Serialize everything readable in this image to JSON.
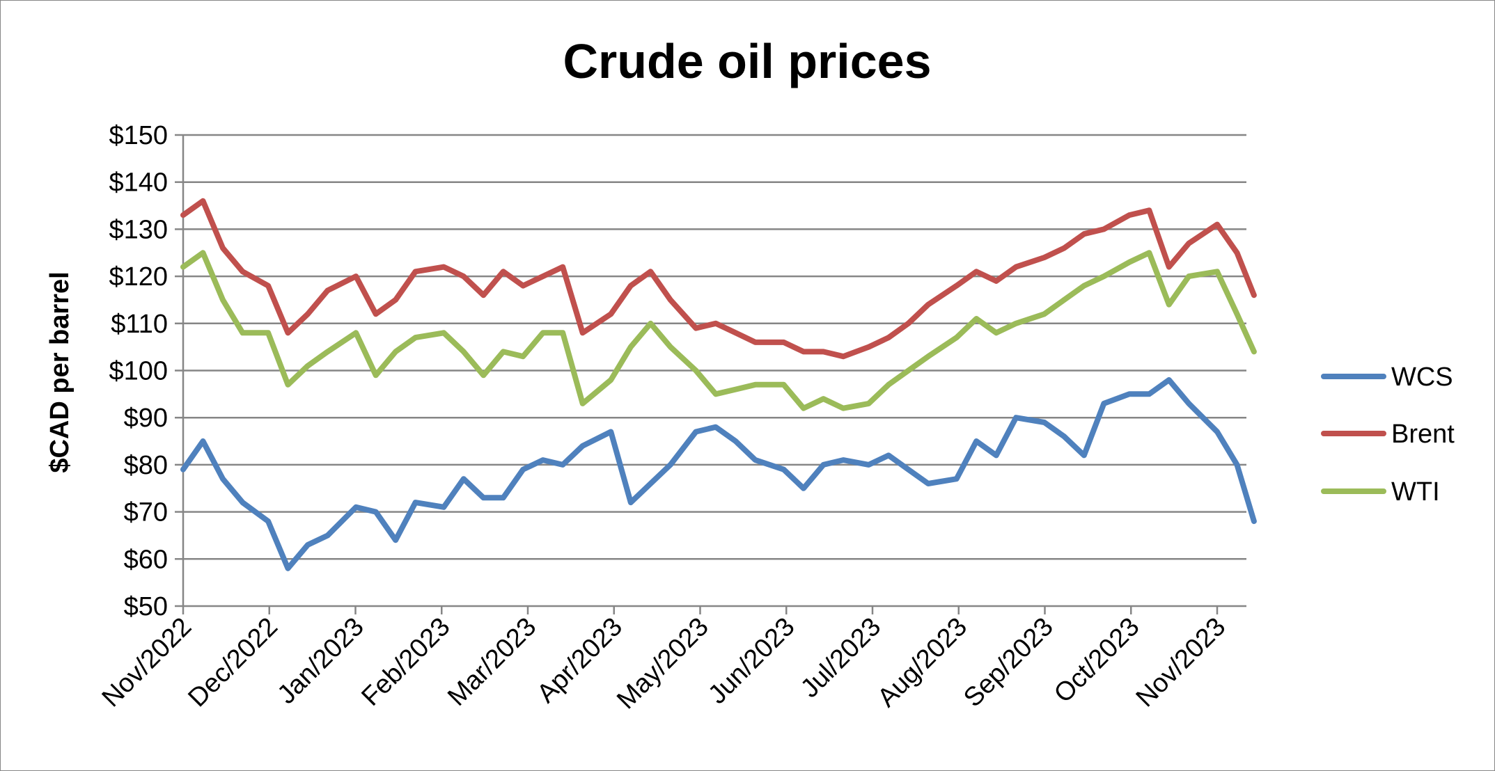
{
  "chart_data": {
    "type": "line",
    "title": "Crude oil prices",
    "xlabel": "",
    "ylabel": "$CAD per barrel",
    "ylim": [
      50,
      150
    ],
    "y_ticks": [
      "$50",
      "$60",
      "$70",
      "$80",
      "$90",
      "$100",
      "$110",
      "$120",
      "$130",
      "$140",
      "$150"
    ],
    "x_ticks": [
      "Nov/2022",
      "Dec/2022",
      "Jan/2023",
      "Feb/2023",
      "Mar/2023",
      "Apr/2023",
      "May/2023",
      "Jun/2023",
      "Jul/2023",
      "Aug/2023",
      "Sep/2023",
      "Oct/2023",
      "Nov/2023"
    ],
    "grid": true,
    "legend_position": "right",
    "x": [
      "2022-11-01",
      "2022-11-08",
      "2022-11-15",
      "2022-11-22",
      "2022-12-01",
      "2022-12-08",
      "2022-12-15",
      "2022-12-22",
      "2023-01-01",
      "2023-01-08",
      "2023-01-15",
      "2023-01-22",
      "2023-02-01",
      "2023-02-08",
      "2023-02-15",
      "2023-02-22",
      "2023-03-01",
      "2023-03-08",
      "2023-03-15",
      "2023-03-22",
      "2023-04-01",
      "2023-04-08",
      "2023-04-15",
      "2023-04-22",
      "2023-05-01",
      "2023-05-08",
      "2023-05-15",
      "2023-05-22",
      "2023-06-01",
      "2023-06-08",
      "2023-06-15",
      "2023-06-22",
      "2023-07-01",
      "2023-07-08",
      "2023-07-15",
      "2023-07-22",
      "2023-08-01",
      "2023-08-08",
      "2023-08-15",
      "2023-08-22",
      "2023-09-01",
      "2023-09-08",
      "2023-09-15",
      "2023-09-22",
      "2023-10-01",
      "2023-10-08",
      "2023-10-15",
      "2023-10-22",
      "2023-11-01",
      "2023-11-08",
      "2023-11-14"
    ],
    "series": [
      {
        "name": "WCS",
        "color": "#4F81BD",
        "values": [
          79,
          85,
          77,
          72,
          68,
          58,
          63,
          65,
          71,
          70,
          64,
          72,
          71,
          77,
          73,
          73,
          79,
          81,
          80,
          84,
          87,
          72,
          76,
          80,
          87,
          88,
          85,
          81,
          79,
          75,
          80,
          81,
          80,
          82,
          79,
          76,
          77,
          85,
          82,
          90,
          89,
          86,
          82,
          93,
          95,
          95,
          98,
          93,
          87,
          80,
          68
        ]
      },
      {
        "name": "Brent",
        "color": "#C0504D",
        "values": [
          133,
          136,
          126,
          121,
          118,
          108,
          112,
          117,
          120,
          112,
          115,
          121,
          122,
          120,
          116,
          121,
          118,
          120,
          122,
          108,
          112,
          118,
          121,
          115,
          109,
          110,
          108,
          106,
          106,
          104,
          104,
          103,
          105,
          107,
          110,
          114,
          118,
          121,
          119,
          122,
          124,
          126,
          129,
          130,
          133,
          134,
          122,
          127,
          131,
          125,
          116
        ]
      },
      {
        "name": "WTI",
        "color": "#9BBB59",
        "values": [
          122,
          125,
          115,
          108,
          108,
          97,
          101,
          104,
          108,
          99,
          104,
          107,
          108,
          104,
          99,
          104,
          103,
          108,
          108,
          93,
          98,
          105,
          110,
          105,
          100,
          95,
          96,
          97,
          97,
          92,
          94,
          92,
          93,
          97,
          100,
          103,
          107,
          111,
          108,
          110,
          112,
          115,
          118,
          120,
          123,
          125,
          114,
          120,
          121,
          112,
          104
        ]
      }
    ]
  }
}
